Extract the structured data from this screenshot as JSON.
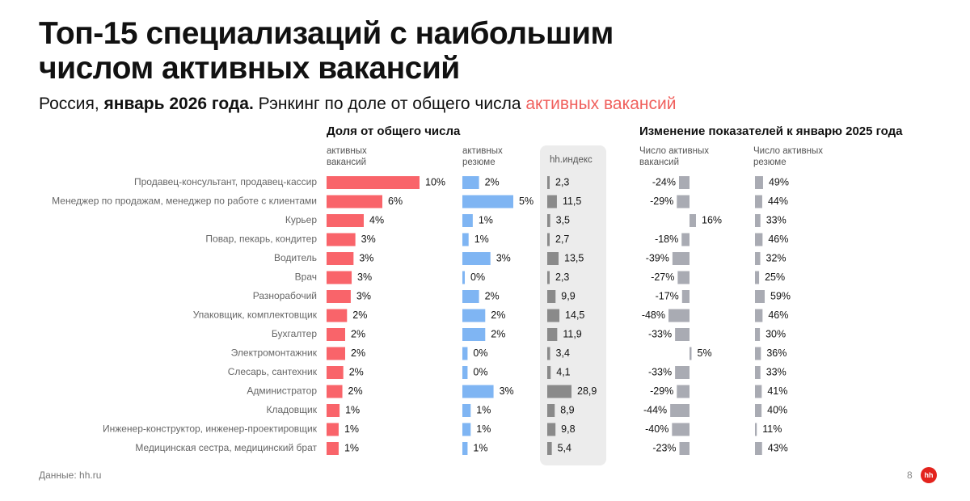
{
  "header": {
    "title_line1": "Топ-15 специализаций с наибольшим",
    "title_line2": "числом активных вакансий",
    "subtitle_part1": "Россия, ",
    "subtitle_bold": "январь 2026 года.",
    "subtitle_part2": " Рэнкинг по доле от общего числа ",
    "subtitle_accent": "активных вакансий"
  },
  "columns": {
    "share_header": "Доля от общего числа",
    "share_vacancies_sub": "активных\nвакансий",
    "share_resumes_sub": "активных\nрезюме",
    "hh_index_header": "hh.индекс",
    "change_header": "Изменение показателей к январю 2025 года",
    "change_vacancies_sub": "Число активных\nвакансий",
    "change_resumes_sub": "Число активных\nрезюме"
  },
  "footer": {
    "source": "Данные: hh.ru",
    "page_number": "8",
    "logo": "hh"
  },
  "colors": {
    "accent": "#f0605d",
    "vacancy_bar": "#f9646a",
    "resume_bar": "#7fb5f3",
    "index_bar": "#8a8a8a",
    "change_bar": "#a9abb3"
  },
  "chart_data": {
    "type": "bar",
    "categories": [
      "Продавец-консультант, продавец-кассир",
      "Менеджер по продажам, менеджер по работе с клиентами",
      "Курьер",
      "Повар, пекарь, кондитер",
      "Водитель",
      "Врач",
      "Разнорабочий",
      "Упаковщик, комплектовщик",
      "Бухгалтер",
      "Электромонтажник",
      "Слесарь, сантехник",
      "Администратор",
      "Кладовщик",
      "Инженер-конструктор, инженер-проектировщик",
      "Медицинская сестра, медицинский брат"
    ],
    "series": [
      {
        "key": "vac_share",
        "values": [
          10,
          6,
          4,
          3,
          3,
          3,
          3,
          2,
          2,
          2,
          2,
          2,
          1,
          1,
          1
        ],
        "labels": [
          "10%",
          "6%",
          "4%",
          "3%",
          "3%",
          "3%",
          "3%",
          "2%",
          "2%",
          "2%",
          "2%",
          "2%",
          "1%",
          "1%",
          "1%"
        ],
        "bar_values": [
          10,
          6,
          4,
          3.1,
          2.9,
          2.7,
          2.6,
          2.2,
          2.0,
          2.0,
          1.8,
          1.7,
          1.4,
          1.3,
          1.3
        ]
      },
      {
        "key": "res_share",
        "values": [
          2,
          5,
          1,
          1,
          3,
          0,
          2,
          2,
          2,
          0,
          0,
          3,
          1,
          1,
          1
        ],
        "labels": [
          "2%",
          "5%",
          "1%",
          "1%",
          "3%",
          "0%",
          "2%",
          "2%",
          "2%",
          "0%",
          "0%",
          "3%",
          "1%",
          "1%",
          "1%"
        ],
        "bar_values": [
          1.6,
          4.9,
          1.0,
          0.6,
          2.7,
          0.2,
          1.6,
          2.2,
          2.2,
          0.5,
          0.5,
          3.0,
          0.8,
          0.8,
          0.5
        ]
      },
      {
        "key": "hh_index",
        "values": [
          2.3,
          11.5,
          3.5,
          2.7,
          13.5,
          2.3,
          9.9,
          14.5,
          11.9,
          3.4,
          4.1,
          28.9,
          8.9,
          9.8,
          5.4
        ],
        "labels": [
          "2,3",
          "11,5",
          "3,5",
          "2,7",
          "13,5",
          "2,3",
          "9,9",
          "14,5",
          "11,9",
          "3,4",
          "4,1",
          "28,9",
          "8,9",
          "9,8",
          "5,4"
        ]
      },
      {
        "key": "vac_change",
        "values": [
          -24,
          -29,
          16,
          -18,
          -39,
          -27,
          -17,
          -48,
          -33,
          5,
          -33,
          -29,
          -44,
          -40,
          -23
        ],
        "labels": [
          "-24%",
          "-29%",
          "16%",
          "-18%",
          "-39%",
          "-27%",
          "-17%",
          "-48%",
          "-33%",
          "5%",
          "-33%",
          "-29%",
          "-44%",
          "-40%",
          "-23%"
        ]
      },
      {
        "key": "res_change",
        "values": [
          49,
          44,
          33,
          46,
          32,
          25,
          59,
          46,
          30,
          36,
          33,
          41,
          40,
          11,
          43
        ],
        "labels": [
          "49%",
          "44%",
          "33%",
          "46%",
          "32%",
          "25%",
          "59%",
          "46%",
          "30%",
          "36%",
          "33%",
          "41%",
          "40%",
          "11%",
          "43%"
        ]
      }
    ]
  }
}
